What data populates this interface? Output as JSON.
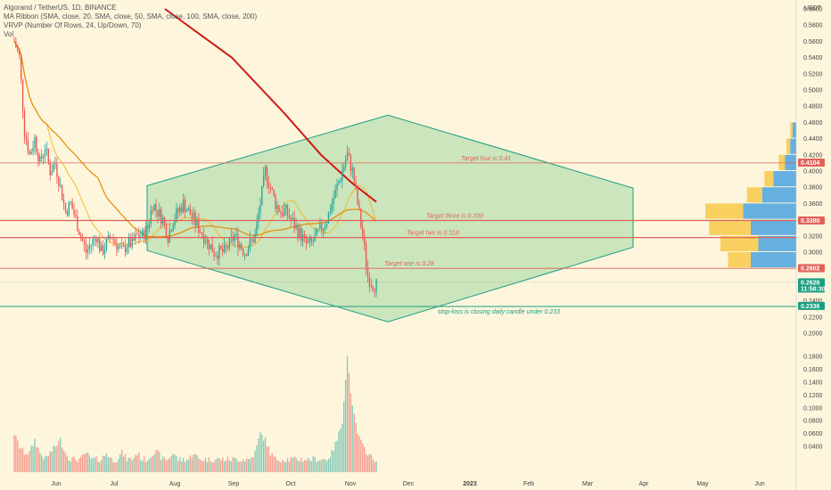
{
  "legend": {
    "symbol": "Algorand / TetherUS, 1D, BINANCE",
    "ma_ribbon": "MA Ribbon (SMA, close, 20, SMA, close, 50, SMA, close, 100, SMA, close, 200)",
    "vrvp": "VRVP (Number Of Rows, 24, Up/Down, 70)",
    "vol": "Vol"
  },
  "colors": {
    "background": "#fdf6dd",
    "up": "#26a69a",
    "down": "#ef5350",
    "diamond_fill": "#b9dfb0",
    "diamond_stroke": "#1c9e80",
    "target_line": "#e0625a",
    "ma_red": "#d01717",
    "ma_orange": "#e68a00",
    "ma_yellow": "#f5b92f",
    "vp_up": "#4aa3df",
    "vp_down": "#f8c94a"
  },
  "chart_data": {
    "type": "candlestick",
    "y_unit": "USDT",
    "ylim": [
      0.2,
      0.6
    ],
    "y_ticks": [
      "0.6000",
      "0.5800",
      "0.5600",
      "0.5400",
      "0.5200",
      "0.5000",
      "0.4800",
      "0.4600",
      "0.4400",
      "0.4200",
      "0.4000",
      "0.3800",
      "0.3600",
      "0.3400",
      "0.3200",
      "0.3000",
      "0.2800",
      "0.2600",
      "0.2400",
      "0.2200",
      "0.2000"
    ],
    "vol_ticks": [
      "0.1800",
      "0.1600",
      "0.1400",
      "0.1200",
      "0.1000",
      "0.0800",
      "0.0600",
      "0.0400"
    ],
    "x_ticks": [
      "Jun",
      "Jul",
      "Aug",
      "Sep",
      "Oct",
      "Nov",
      "Dec",
      "2023",
      "Feb",
      "Mar",
      "Apr",
      "May",
      "Jun"
    ],
    "price_labels": [
      {
        "value": 0.4104,
        "text": "0.4104",
        "color": "#e0625a"
      },
      {
        "value": 0.339,
        "text": "0.3390",
        "color": "#e0625a"
      },
      {
        "value": 0.2802,
        "text": "0.2802",
        "color": "#e0625a"
      },
      {
        "value": 0.2628,
        "text": "0.2628",
        "sub": "11:58:30",
        "color": "#1c9e80"
      },
      {
        "value": 0.2336,
        "text": "0.2336",
        "color": "#1c9e80"
      }
    ],
    "targets": [
      {
        "label": "Target four is 0.41",
        "value": 0.41
      },
      {
        "label": "Target three is 0.339",
        "value": 0.339
      },
      {
        "label": "Target two is 0.318",
        "value": 0.318
      },
      {
        "label": "Target one is 0.28",
        "value": 0.28
      }
    ],
    "stop_loss": {
      "label": "stop-loss is closing daily candle under 0.233",
      "value": 0.233
    },
    "diamond": [
      {
        "x": "Jul 18",
        "y": 0.382
      },
      {
        "x": "Nov 25",
        "y": 0.469
      },
      {
        "x": "Mar 28",
        "y": 0.379
      },
      {
        "x": "Mar 28",
        "y": 0.306
      },
      {
        "x": "Nov 25",
        "y": 0.214
      },
      {
        "x": "Jul 18",
        "y": 0.302
      }
    ],
    "price_path": [
      0.56,
      0.54,
      0.45,
      0.42,
      0.44,
      0.41,
      0.43,
      0.4,
      0.41,
      0.38,
      0.35,
      0.36,
      0.34,
      0.32,
      0.3,
      0.31,
      0.32,
      0.3,
      0.31,
      0.32,
      0.31,
      0.3,
      0.31,
      0.31,
      0.32,
      0.32,
      0.33,
      0.36,
      0.35,
      0.34,
      0.32,
      0.34,
      0.35,
      0.36,
      0.35,
      0.34,
      0.33,
      0.32,
      0.31,
      0.3,
      0.3,
      0.3,
      0.31,
      0.32,
      0.31,
      0.3,
      0.31,
      0.32,
      0.36,
      0.4,
      0.38,
      0.36,
      0.35,
      0.35,
      0.34,
      0.33,
      0.32,
      0.31,
      0.31,
      0.32,
      0.33,
      0.34,
      0.36,
      0.38,
      0.4,
      0.42,
      0.4,
      0.36,
      0.32,
      0.27,
      0.26
    ],
    "volume_path": [
      0.06,
      0.04,
      0.03,
      0.03,
      0.05,
      0.03,
      0.02,
      0.03,
      0.04,
      0.05,
      0.03,
      0.02,
      0.02,
      0.02,
      0.03,
      0.02,
      0.02,
      0.02,
      0.03,
      0.02,
      0.02,
      0.03,
      0.02,
      0.02,
      0.03,
      0.02,
      0.02,
      0.03,
      0.03,
      0.02,
      0.02,
      0.03,
      0.02,
      0.02,
      0.02,
      0.03,
      0.02,
      0.02,
      0.02,
      0.02,
      0.02,
      0.02,
      0.02,
      0.02,
      0.02,
      0.02,
      0.02,
      0.03,
      0.06,
      0.05,
      0.03,
      0.02,
      0.02,
      0.02,
      0.02,
      0.02,
      0.02,
      0.02,
      0.02,
      0.02,
      0.02,
      0.02,
      0.03,
      0.05,
      0.08,
      0.18,
      0.1,
      0.06,
      0.04,
      0.03,
      0.02
    ],
    "volume_profile": [
      {
        "price": 0.29,
        "up": 0.6,
        "down": 0.3
      },
      {
        "price": 0.31,
        "up": 0.5,
        "down": 0.5
      },
      {
        "price": 0.33,
        "up": 0.6,
        "down": 0.55
      },
      {
        "price": 0.35,
        "up": 0.7,
        "down": 0.5
      },
      {
        "price": 0.37,
        "up": 0.45,
        "down": 0.2
      },
      {
        "price": 0.39,
        "up": 0.3,
        "down": 0.12
      },
      {
        "price": 0.41,
        "up": 0.15,
        "down": 0.08
      },
      {
        "price": 0.43,
        "up": 0.08,
        "down": 0.05
      },
      {
        "price": 0.45,
        "up": 0.05,
        "down": 0.03
      }
    ]
  }
}
